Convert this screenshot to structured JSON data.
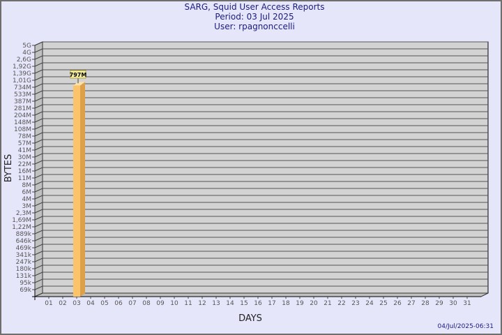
{
  "chart_data": {
    "type": "bar",
    "title_lines": [
      "SARG, Squid User Access Reports",
      "Period: 03 Jul 2025",
      "User: rpagnonccelli"
    ],
    "xlabel": "DAYS",
    "ylabel": "BYTES",
    "y_scale": "log",
    "grid": true,
    "y_tick_labels": [
      "5G",
      "4G",
      "2,6G",
      "1,92G",
      "1,39G",
      "1,01G",
      "734M",
      "533M",
      "387M",
      "281M",
      "204M",
      "148M",
      "108M",
      "78M",
      "57M",
      "41M",
      "30M",
      "22M",
      "16M",
      "11M",
      "8M",
      "6M",
      "4M",
      "3M",
      "2,3M",
      "1,69M",
      "1,22M",
      "889k",
      "646k",
      "469k",
      "341k",
      "247k",
      "180k",
      "131k",
      "95k",
      "69k"
    ],
    "y_tick_values": [
      5000000000,
      4000000000,
      2600000000,
      1920000000,
      1390000000,
      1010000000,
      734000000,
      533000000,
      387000000,
      281000000,
      204000000,
      148000000,
      108000000,
      78000000,
      57000000,
      41000000,
      30000000,
      22000000,
      16000000,
      11000000,
      8000000,
      6000000,
      4000000,
      3000000,
      2300000,
      1690000,
      1220000,
      889000,
      646000,
      469000,
      341000,
      247000,
      180000,
      131000,
      95000,
      69000
    ],
    "categories": [
      "01",
      "02",
      "03",
      "04",
      "05",
      "06",
      "07",
      "08",
      "09",
      "10",
      "11",
      "12",
      "13",
      "14",
      "15",
      "16",
      "17",
      "18",
      "19",
      "20",
      "21",
      "22",
      "23",
      "24",
      "25",
      "26",
      "27",
      "28",
      "29",
      "30",
      "31"
    ],
    "values": [
      null,
      null,
      797000000,
      null,
      null,
      null,
      null,
      null,
      null,
      null,
      null,
      null,
      null,
      null,
      null,
      null,
      null,
      null,
      null,
      null,
      null,
      null,
      null,
      null,
      null,
      null,
      null,
      null,
      null,
      null,
      null
    ],
    "data_labels": {
      "03": "797M"
    },
    "colors": {
      "bar_front": "#fbc36a",
      "bar_side": "#dca04a",
      "bar_top": "#fde3a8",
      "wall": "#d3d3d3",
      "side_wall": "#c0c0c0",
      "label_bg": "#f5eea0",
      "title": "#1a1a80"
    }
  },
  "footer": {
    "timestamp": "04/Jul/2025-06:31"
  }
}
